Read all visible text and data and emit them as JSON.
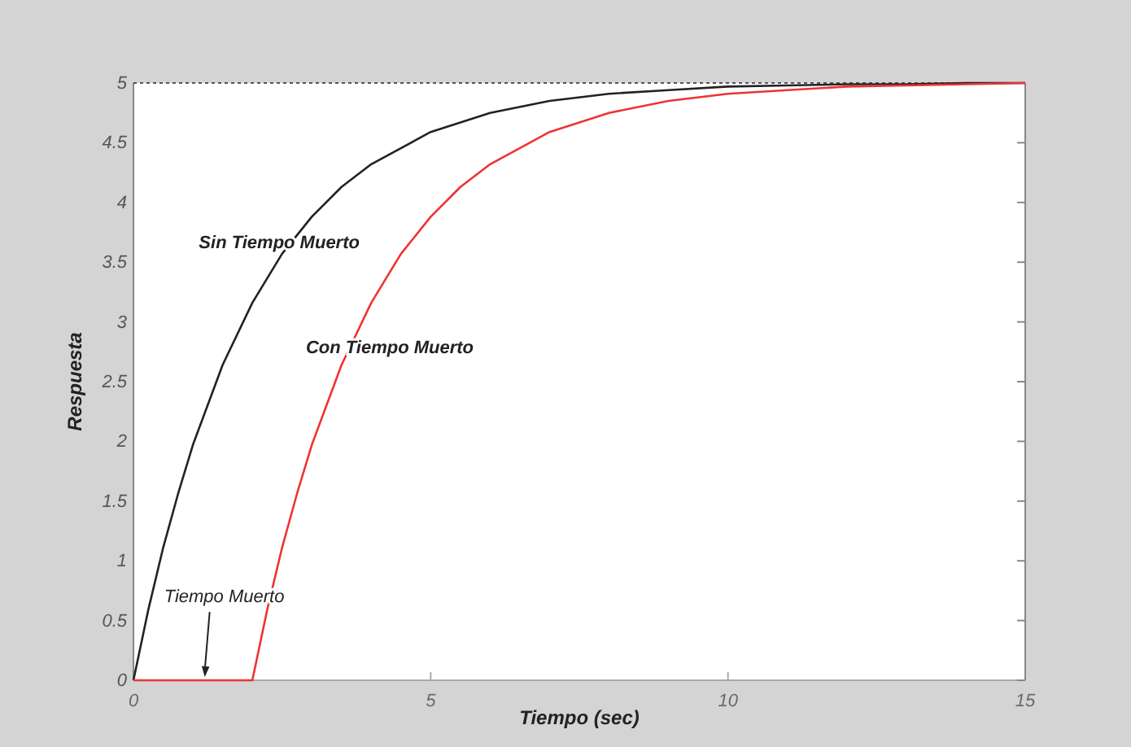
{
  "chart_data": {
    "type": "line",
    "xlabel": "Tiempo (sec)",
    "ylabel": "Respuesta",
    "xlim": [
      0,
      15
    ],
    "xticks": [
      0,
      5,
      10,
      15
    ],
    "ylim": [
      0,
      5
    ],
    "yticks": [
      0,
      0.5,
      1,
      1.5,
      2,
      2.5,
      3,
      3.5,
      4,
      4.5,
      5
    ],
    "grid": false,
    "marker": "none",
    "line_style": "solid",
    "series": [
      {
        "color": "#222222",
        "x": [
          0,
          0.25,
          0.5,
          0.75,
          1,
          1.5,
          2,
          2.5,
          3,
          3.5,
          4,
          5,
          6,
          7,
          8,
          9,
          10,
          11,
          12,
          13,
          14,
          15
        ],
        "values": [
          0,
          0.59,
          1.11,
          1.56,
          1.97,
          2.64,
          3.16,
          3.57,
          3.88,
          4.13,
          4.32,
          4.59,
          4.75,
          4.85,
          4.91,
          4.94,
          4.97,
          4.98,
          4.99,
          4.99,
          5,
          5
        ]
      },
      {
        "color": "#ee3333",
        "x": [
          0,
          2,
          2.25,
          2.5,
          2.75,
          3,
          3.5,
          4,
          4.5,
          5,
          5.5,
          6,
          7,
          8,
          9,
          10,
          11,
          12,
          13,
          14,
          15
        ],
        "values": [
          0,
          0,
          0.59,
          1.11,
          1.56,
          1.97,
          2.64,
          3.16,
          3.57,
          3.88,
          4.13,
          4.32,
          4.59,
          4.75,
          4.85,
          4.91,
          4.94,
          4.97,
          4.98,
          4.99,
          5
        ]
      }
    ],
    "ref_lines": [
      {
        "axis": "y",
        "value": 5,
        "line_style": "dotted",
        "color": "#555555"
      }
    ],
    "annotations": [
      "Sin Tiempo Muerto",
      "Con Tiempo Muerto",
      {
        "text": "Tiempo Muerto",
        "x": 1.2,
        "y": 0
      }
    ]
  }
}
